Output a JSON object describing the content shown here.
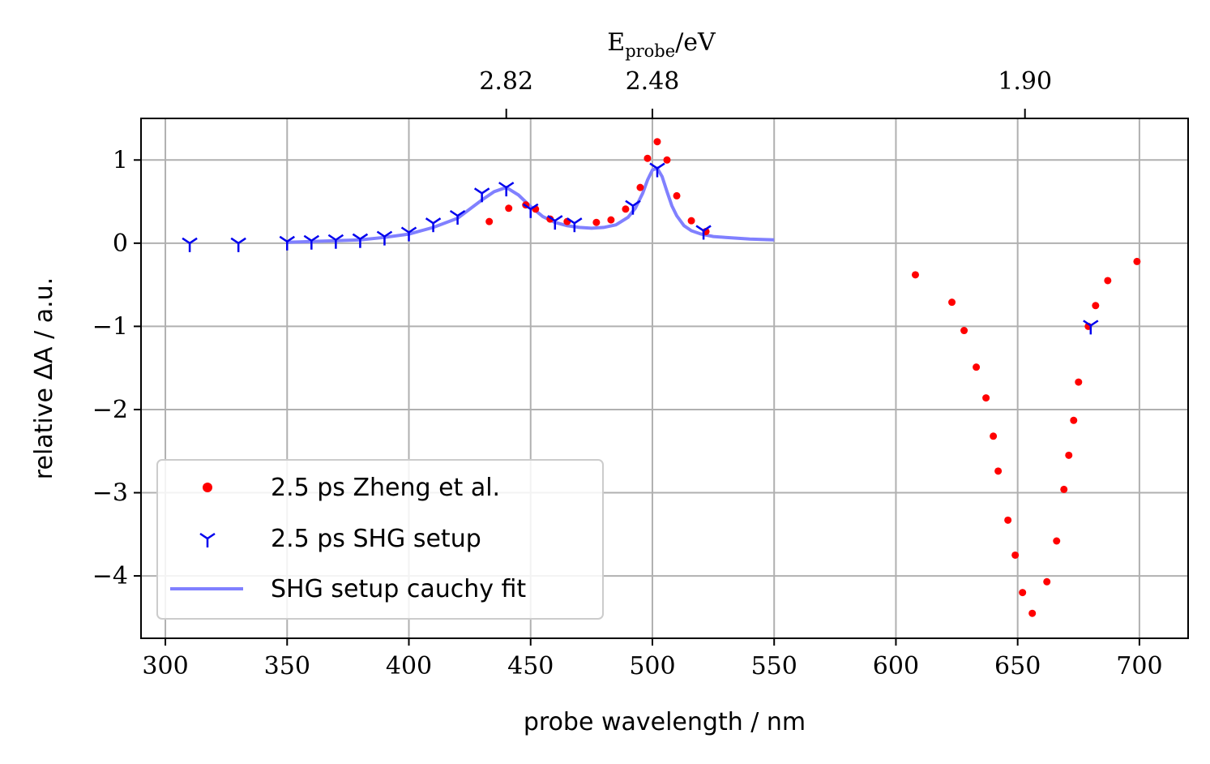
{
  "chart_data": {
    "type": "scatter",
    "xlabel": "probe wavelength / nm",
    "ylabel": "relative ΔA / a.u.",
    "top_axis_label": {
      "main": "E",
      "sub": "probe",
      "rest": "/eV"
    },
    "xlim": [
      290,
      720
    ],
    "ylim": [
      -4.75,
      1.5
    ],
    "xticks": [
      300,
      350,
      400,
      450,
      500,
      550,
      600,
      650,
      700
    ],
    "yticks": [
      1,
      0,
      -1,
      -2,
      -3,
      -4
    ],
    "ytick_labels": [
      "1",
      "0",
      "−1",
      "−2",
      "−3",
      "−4"
    ],
    "top_ticks": [
      {
        "x": 440,
        "label": "2.82"
      },
      {
        "x": 500,
        "label": "2.48"
      },
      {
        "x": 653,
        "label": "1.90"
      }
    ],
    "grid": true,
    "legend_position": "lower-left",
    "series": [
      {
        "name": "2.5 ps Zheng et al.",
        "marker": "dot",
        "color": "#ff0000",
        "x": [
          433,
          441,
          448,
          452,
          458,
          465,
          477,
          483,
          489,
          495,
          498,
          502,
          506,
          510,
          516,
          522,
          608,
          623,
          628,
          633,
          637,
          640,
          642,
          646,
          649,
          652,
          656,
          662,
          666,
          669,
          671,
          673,
          675,
          679,
          682,
          687,
          699
        ],
        "y": [
          0.26,
          0.42,
          0.46,
          0.41,
          0.29,
          0.26,
          0.25,
          0.28,
          0.41,
          0.67,
          1.02,
          1.22,
          1.0,
          0.57,
          0.27,
          0.14,
          -0.38,
          -0.71,
          -1.05,
          -1.49,
          -1.86,
          -2.32,
          -2.74,
          -3.33,
          -3.75,
          -4.2,
          -4.45,
          -4.07,
          -3.58,
          -2.96,
          -2.55,
          -2.13,
          -1.67,
          -1.0,
          -0.75,
          -0.45,
          -0.22
        ]
      },
      {
        "name": "2.5 ps SHG setup",
        "marker": "tri_down",
        "color": "#0000ee",
        "x": [
          310,
          330,
          350,
          360,
          370,
          380,
          390,
          400,
          410,
          420,
          430,
          440,
          450,
          460,
          468,
          492,
          502,
          521,
          680
        ],
        "y": [
          0.0,
          0.0,
          0.02,
          0.03,
          0.04,
          0.05,
          0.08,
          0.13,
          0.24,
          0.33,
          0.6,
          0.67,
          0.41,
          0.27,
          0.24,
          0.45,
          0.9,
          0.15,
          -0.99
        ]
      },
      {
        "name": "SHG setup cauchy fit",
        "marker": "line",
        "color": "#8080ff",
        "x": [
          350,
          360,
          370,
          380,
          390,
          400,
          410,
          420,
          430,
          435,
          440,
          445,
          450,
          455,
          460,
          465,
          470,
          475,
          480,
          485,
          490,
          493,
          496,
          498,
          500,
          502,
          504,
          506,
          508,
          510,
          513,
          516,
          520,
          525,
          530,
          540,
          550
        ],
        "y": [
          0.01,
          0.02,
          0.03,
          0.04,
          0.07,
          0.11,
          0.19,
          0.3,
          0.52,
          0.62,
          0.67,
          0.58,
          0.44,
          0.32,
          0.25,
          0.21,
          0.19,
          0.18,
          0.19,
          0.22,
          0.31,
          0.42,
          0.6,
          0.76,
          0.88,
          0.9,
          0.8,
          0.62,
          0.45,
          0.33,
          0.21,
          0.15,
          0.11,
          0.08,
          0.07,
          0.05,
          0.04
        ]
      }
    ]
  }
}
